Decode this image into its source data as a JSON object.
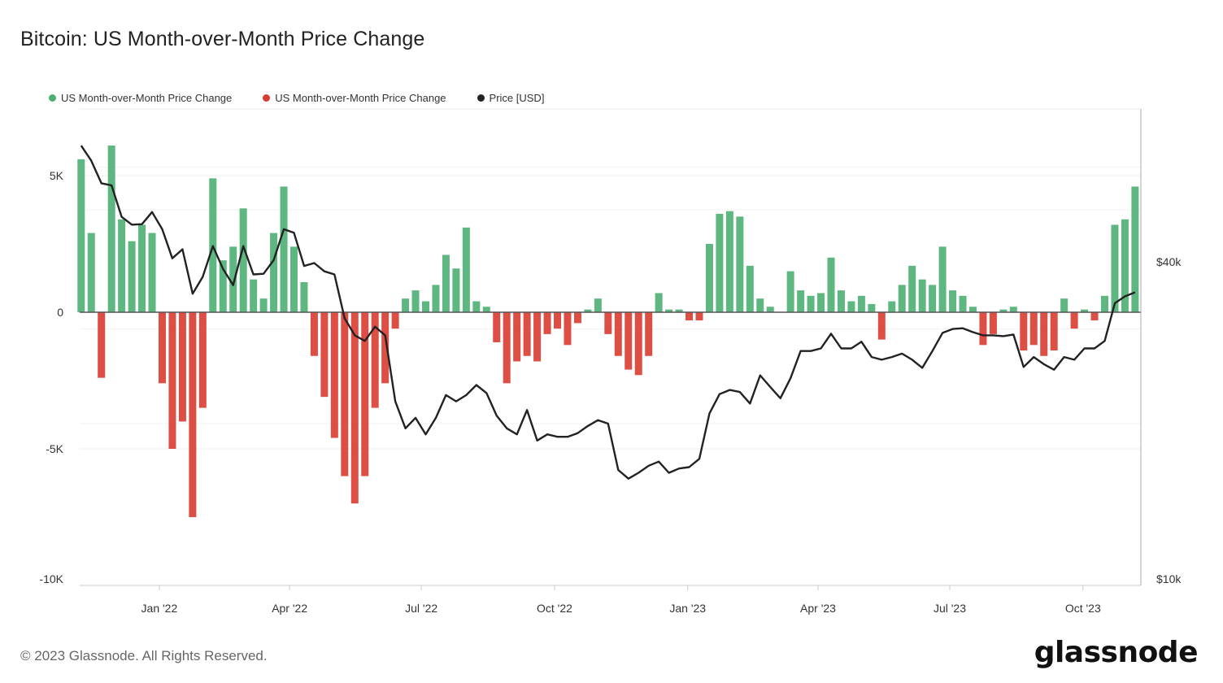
{
  "title": "Bitcoin: US Month-over-Month Price Change",
  "footer": "© 2023 Glassnode. All Rights Reserved.",
  "logo_text": "glassnode",
  "legend": [
    {
      "label": "US Month-over-Month Price Change",
      "color": "#4caf72"
    },
    {
      "label": "US Month-over-Month Price Change",
      "color": "#d93b30"
    },
    {
      "label": "Price [USD]",
      "color": "#222222"
    }
  ],
  "chart_data": {
    "type": "bar+line",
    "title": "Bitcoin: US Month-over-Month Price Change",
    "grid": true,
    "legend_position": "top-left",
    "x_range": [
      "2021-11-07",
      "2023-11-10"
    ],
    "x_ticks": [
      {
        "label": "Jan '22",
        "date": "2022-01-01"
      },
      {
        "label": "Apr '22",
        "date": "2022-04-01"
      },
      {
        "label": "Jul '22",
        "date": "2022-07-01"
      },
      {
        "label": "Oct '22",
        "date": "2022-10-01"
      },
      {
        "label": "Jan '23",
        "date": "2023-01-01"
      },
      {
        "label": "Apr '23",
        "date": "2023-04-01"
      },
      {
        "label": "Jul '23",
        "date": "2023-07-01"
      },
      {
        "label": "Oct '23",
        "date": "2023-10-01"
      }
    ],
    "left_axis": {
      "ylim": [
        -10000,
        7440
      ],
      "ticks": [
        {
          "label": "5K",
          "value": 5000
        },
        {
          "label": "0",
          "value": 0
        },
        {
          "label": "-5K",
          "value": -5000
        },
        {
          "label": "-10K",
          "value": -10000
        }
      ]
    },
    "right_axis": {
      "scale": "log",
      "ylim": [
        10000,
        77000
      ],
      "ticks": [
        {
          "label": "$40k",
          "value": 40000
        },
        {
          "label": "$10k",
          "value": 10000
        }
      ]
    },
    "positive_color": "#4caf72",
    "negative_color": "#d93b30",
    "price_color": "#222222",
    "dates": [
      "2021-11-08",
      "2021-11-15",
      "2021-11-22",
      "2021-11-29",
      "2021-12-06",
      "2021-12-13",
      "2021-12-20",
      "2021-12-27",
      "2022-01-03",
      "2022-01-10",
      "2022-01-17",
      "2022-01-24",
      "2022-01-31",
      "2022-02-07",
      "2022-02-14",
      "2022-02-21",
      "2022-02-28",
      "2022-03-07",
      "2022-03-14",
      "2022-03-21",
      "2022-03-28",
      "2022-04-04",
      "2022-04-11",
      "2022-04-18",
      "2022-04-25",
      "2022-05-02",
      "2022-05-09",
      "2022-05-16",
      "2022-05-23",
      "2022-05-30",
      "2022-06-06",
      "2022-06-13",
      "2022-06-20",
      "2022-06-27",
      "2022-07-04",
      "2022-07-11",
      "2022-07-18",
      "2022-07-25",
      "2022-08-01",
      "2022-08-08",
      "2022-08-15",
      "2022-08-22",
      "2022-08-29",
      "2022-09-05",
      "2022-09-12",
      "2022-09-19",
      "2022-09-26",
      "2022-10-03",
      "2022-10-10",
      "2022-10-17",
      "2022-10-24",
      "2022-10-31",
      "2022-11-07",
      "2022-11-14",
      "2022-11-21",
      "2022-11-28",
      "2022-12-05",
      "2022-12-12",
      "2022-12-19",
      "2022-12-26",
      "2023-01-02",
      "2023-01-09",
      "2023-01-16",
      "2023-01-23",
      "2023-01-30",
      "2023-02-06",
      "2023-02-13",
      "2023-02-20",
      "2023-02-27",
      "2023-03-06",
      "2023-03-13",
      "2023-03-20",
      "2023-03-27",
      "2023-04-03",
      "2023-04-10",
      "2023-04-17",
      "2023-04-24",
      "2023-05-01",
      "2023-05-08",
      "2023-05-15",
      "2023-05-22",
      "2023-05-29",
      "2023-06-05",
      "2023-06-12",
      "2023-06-19",
      "2023-06-26",
      "2023-07-03",
      "2023-07-10",
      "2023-07-17",
      "2023-07-24",
      "2023-07-31",
      "2023-08-07",
      "2023-08-14",
      "2023-08-21",
      "2023-08-28",
      "2023-09-04",
      "2023-09-11",
      "2023-09-18",
      "2023-09-25",
      "2023-10-02",
      "2023-10-09",
      "2023-10-16",
      "2023-10-23",
      "2023-10-30",
      "2023-11-06"
    ],
    "series": [
      {
        "name": "US Month-over-Month Price Change",
        "axis": "left",
        "type": "bar",
        "values": [
          5600,
          2900,
          -2400,
          6100,
          3400,
          2600,
          3200,
          2900,
          -2600,
          -5000,
          -4000,
          -7500,
          -3500,
          4900,
          1900,
          2400,
          3800,
          1200,
          500,
          2900,
          4600,
          2400,
          1100,
          -1600,
          -3100,
          -4600,
          -6000,
          -7000,
          -6000,
          -3500,
          -2600,
          -600,
          500,
          800,
          400,
          1000,
          2100,
          1600,
          3100,
          400,
          200,
          -1100,
          -2600,
          -1800,
          -1600,
          -1800,
          -800,
          -600,
          -1200,
          -400,
          100,
          500,
          -800,
          -1600,
          -2100,
          -2300,
          -1600,
          700,
          100,
          100,
          -300,
          -300,
          2500,
          3600,
          3700,
          3500,
          1700,
          500,
          200,
          0,
          1500,
          800,
          600,
          700,
          2000,
          800,
          400,
          600,
          300,
          -1000,
          400,
          1000,
          1700,
          1200,
          1000,
          2400,
          800,
          600,
          200,
          -1200,
          -800,
          100,
          200,
          -1400,
          -1200,
          -1600,
          -1400,
          500,
          -600,
          100,
          -300,
          600,
          3200,
          3400,
          4600
        ]
      },
      {
        "name": "Price [USD]",
        "axis": "right",
        "type": "line",
        "values": [
          65800,
          61700,
          56000,
          55500,
          48500,
          46900,
          47000,
          49500,
          46000,
          40600,
          42200,
          34900,
          37500,
          42800,
          38800,
          36200,
          42800,
          37900,
          38000,
          40300,
          46000,
          45300,
          39300,
          39800,
          38400,
          37900,
          31400,
          29200,
          28500,
          30300,
          29200,
          22000,
          19600,
          20500,
          19100,
          20500,
          22600,
          22000,
          22600,
          23600,
          22800,
          20700,
          19600,
          19100,
          21200,
          18600,
          19100,
          18900,
          18900,
          19200,
          19800,
          20300,
          20000,
          16400,
          15800,
          16200,
          16700,
          17000,
          16200,
          16500,
          16600,
          17200,
          20900,
          22700,
          23100,
          22900,
          21800,
          24600,
          23400,
          22300,
          24300,
          27300,
          27300,
          27600,
          29400,
          27600,
          27600,
          28400,
          26600,
          26300,
          26600,
          27000,
          26300,
          25400,
          27300,
          29500,
          30000,
          30100,
          29600,
          29200,
          29200,
          29100,
          29300,
          25500,
          26600,
          25800,
          25200,
          26600,
          26300,
          27600,
          27600,
          28500,
          33500,
          34500,
          35100
        ]
      }
    ]
  }
}
